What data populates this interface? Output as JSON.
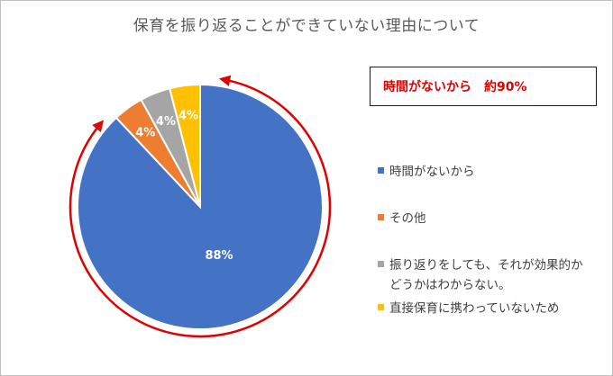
{
  "chart_data": {
    "type": "pie",
    "title": "保育を振り返ることができていない理由について",
    "slices": [
      {
        "label": "時間がないから",
        "value": 88,
        "data_label": "88%",
        "color": "#4472c4"
      },
      {
        "label": "その他",
        "value": 4,
        "data_label": "4%",
        "color": "#ed7d31"
      },
      {
        "label": "振り返りをしても、それが効果的かどうかはわからない。",
        "value": 4,
        "data_label": "4%",
        "color": "#a5a5a5"
      },
      {
        "label": "直接保育に携わっていないため",
        "value": 4,
        "data_label": "4%",
        "color": "#ffc000"
      }
    ],
    "legend_position": "right",
    "annotation": "時間がないから　約90%",
    "annotation_color": "#e00000"
  }
}
